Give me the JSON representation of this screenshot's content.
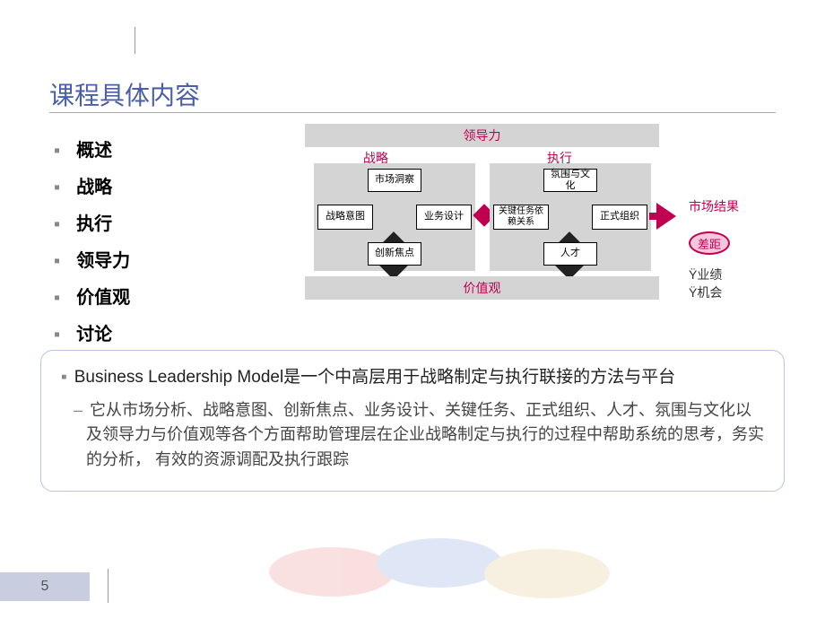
{
  "title": "课程具体内容",
  "bullets": [
    "概述",
    "战略",
    "执行",
    "领导力",
    "价值观",
    "讨论"
  ],
  "diagram": {
    "band_top": "领导力",
    "band_bottom": "价值观",
    "group_left": "战略",
    "group_right": "执行",
    "left_boxes": {
      "top": "市场洞察",
      "left": "战略意图",
      "right": "业务设计",
      "bottom": "创新焦点"
    },
    "right_boxes": {
      "top": "氛围与文化",
      "left": "关键任务依赖关系",
      "right": "正式组织",
      "bottom": "人才"
    },
    "result_label": "市场结果",
    "gap_label": "差距",
    "gap_sub1": "Ÿ业绩",
    "gap_sub2": "Ÿ机会",
    "colors": {
      "accent": "#c00050",
      "band_bg": "#d4d4d4",
      "title": "#4a5fa8",
      "box_border": "#b8c4e8"
    }
  },
  "description": {
    "main": "Business Leadership Model是一个中高层用于战略制定与执行联接的方法与平台",
    "sub": "它从市场分析、战略意图、创新焦点、业务设计、关键任务、正式组织、人才、氛围与文化以及领导力与价值观等各个方面帮助管理层在企业战略制定与执行的过程中帮助系统的思考，务实的分析， 有效的资源调配及执行跟踪"
  },
  "page_number": "5"
}
